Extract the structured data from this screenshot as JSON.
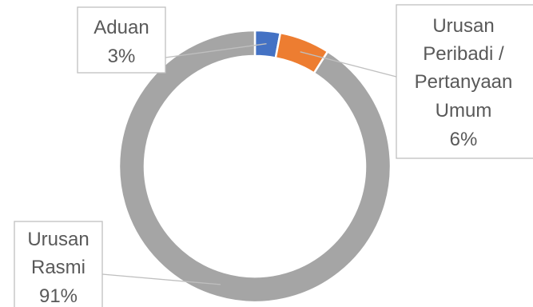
{
  "chart_data": {
    "type": "pie",
    "variant": "donut",
    "title": "",
    "slices": [
      {
        "label": "Aduan",
        "value": 3,
        "value_label": "3%",
        "color": "#4472c4"
      },
      {
        "label": "Urusan Peribadi / Pertanyaan Umum",
        "value": 6,
        "value_label": "6%",
        "color": "#ed7d31"
      },
      {
        "label": "Urusan Rasmi",
        "value": 91,
        "value_label": "91%",
        "color": "#a5a5a5"
      }
    ],
    "label_lines": [
      [
        "Aduan",
        "3%"
      ],
      [
        "Urusan",
        "Peribadi /",
        "Pertanyaan",
        "Umum",
        "6%"
      ],
      [
        "Urusan",
        "Rasmi",
        "91%"
      ]
    ],
    "text_color": "#595959",
    "callout_border_color": "#bfbfbf"
  }
}
